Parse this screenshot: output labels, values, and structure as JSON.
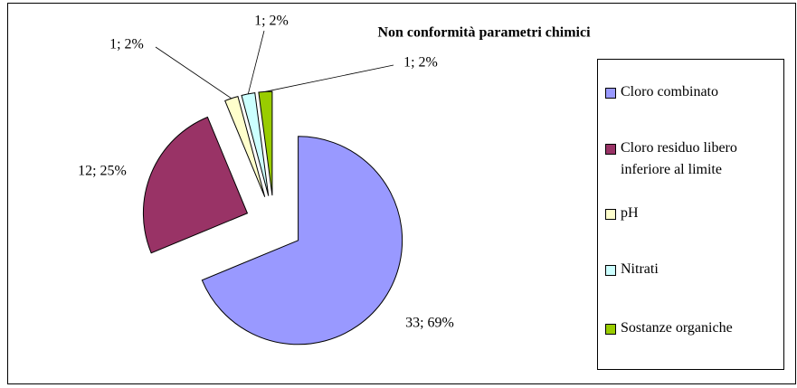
{
  "chart_data": {
    "type": "pie",
    "title": "Non conformità parametri chimici",
    "categories": [
      "Cloro combinato",
      "Cloro residuo libero inferiore al limite",
      "pH",
      "Nitrati",
      "Sostanze organiche"
    ],
    "values": [
      33,
      12,
      1,
      1,
      1
    ],
    "value_labels": [
      "33; 69%",
      "12; 25%",
      "1; 2%",
      "1; 2%",
      "1; 2%"
    ],
    "colors": [
      "#9999ff",
      "#993366",
      "#ffffcc",
      "#ccffff",
      "#99cc00"
    ],
    "legend": "right"
  }
}
